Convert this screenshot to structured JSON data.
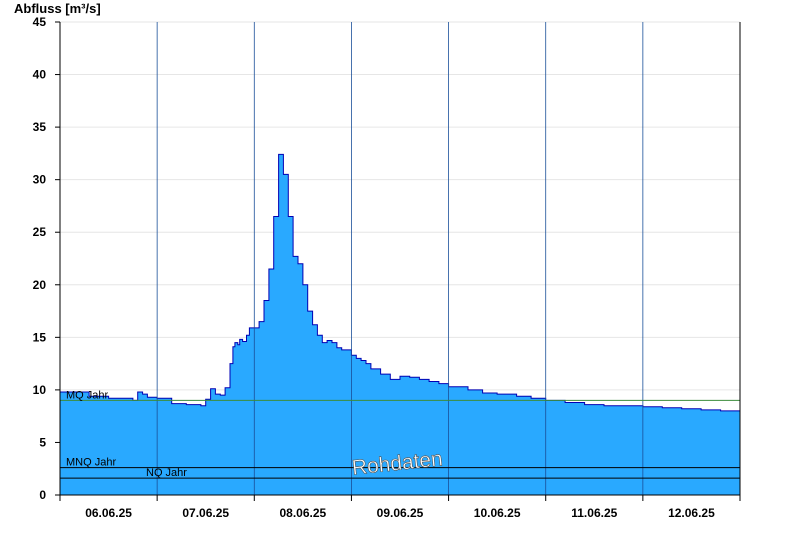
{
  "chart_data": {
    "type": "area",
    "ylabel": "Abfluss [m³/s]",
    "ylim": [
      0,
      45
    ],
    "yticks": [
      0,
      5,
      10,
      15,
      20,
      25,
      30,
      35,
      40,
      45
    ],
    "x_range_days": [
      0,
      7
    ],
    "xtick_labels": [
      "06.06.25",
      "07.06.25",
      "08.06.25",
      "09.06.25",
      "10.06.25",
      "11.06.25",
      "12.06.25"
    ],
    "grid": true,
    "fill_color": "#29a9ff",
    "line_color": "#0000b4",
    "series": [
      {
        "x": [
          0,
          0.3,
          0.5,
          0.75,
          0.8,
          0.85,
          0.9,
          1.0,
          1.15,
          1.3,
          1.45,
          1.5,
          1.55,
          1.6,
          1.65,
          1.7,
          1.75,
          1.78,
          1.8,
          1.83,
          1.85,
          1.88,
          1.92,
          1.95,
          2.0,
          2.05,
          2.1,
          2.15,
          2.2,
          2.25,
          2.3,
          2.35,
          2.4,
          2.45,
          2.5,
          2.55,
          2.6,
          2.65,
          2.7,
          2.75,
          2.8,
          2.85,
          2.9,
          2.95,
          3.0,
          3.05,
          3.1,
          3.15,
          3.2,
          3.3,
          3.4,
          3.5,
          3.55,
          3.6,
          3.7,
          3.8,
          3.9,
          4.0,
          4.2,
          4.35,
          4.5,
          4.7,
          4.85,
          5.0,
          5.2,
          5.4,
          5.6,
          5.8,
          6.0,
          6.2,
          6.4,
          6.6,
          6.8,
          7.0
        ],
        "values": [
          9.8,
          9.4,
          9.2,
          9.0,
          9.8,
          9.6,
          9.3,
          9.2,
          8.7,
          8.6,
          8.5,
          9.1,
          10.1,
          9.6,
          9.5,
          10.2,
          12.5,
          14.1,
          14.5,
          14.3,
          14.8,
          14.6,
          15.2,
          15.9,
          15.9,
          16.5,
          18.5,
          21.5,
          26.5,
          32.4,
          30.5,
          26.5,
          22.7,
          22.0,
          20.0,
          17.5,
          16.2,
          15.2,
          14.5,
          14.7,
          14.5,
          14.0,
          13.8,
          13.8,
          13.3,
          13.0,
          12.8,
          12.5,
          12.0,
          11.5,
          11.0,
          11.3,
          11.3,
          11.2,
          11.0,
          10.8,
          10.6,
          10.3,
          10.0,
          9.7,
          9.6,
          9.4,
          9.2,
          9.0,
          8.8,
          8.6,
          8.5,
          8.5,
          8.4,
          8.3,
          8.2,
          8.1,
          8.0,
          7.9
        ]
      }
    ],
    "reference_lines": [
      {
        "label": "MQ Jahr",
        "value": 9.0,
        "color": "#3c8c3c"
      },
      {
        "label": "MNQ Jahr",
        "value": 2.6,
        "color": "#000000"
      },
      {
        "label": "NQ Jahr",
        "value": 1.6,
        "color": "#000000"
      }
    ],
    "watermark": "Rohdaten"
  }
}
